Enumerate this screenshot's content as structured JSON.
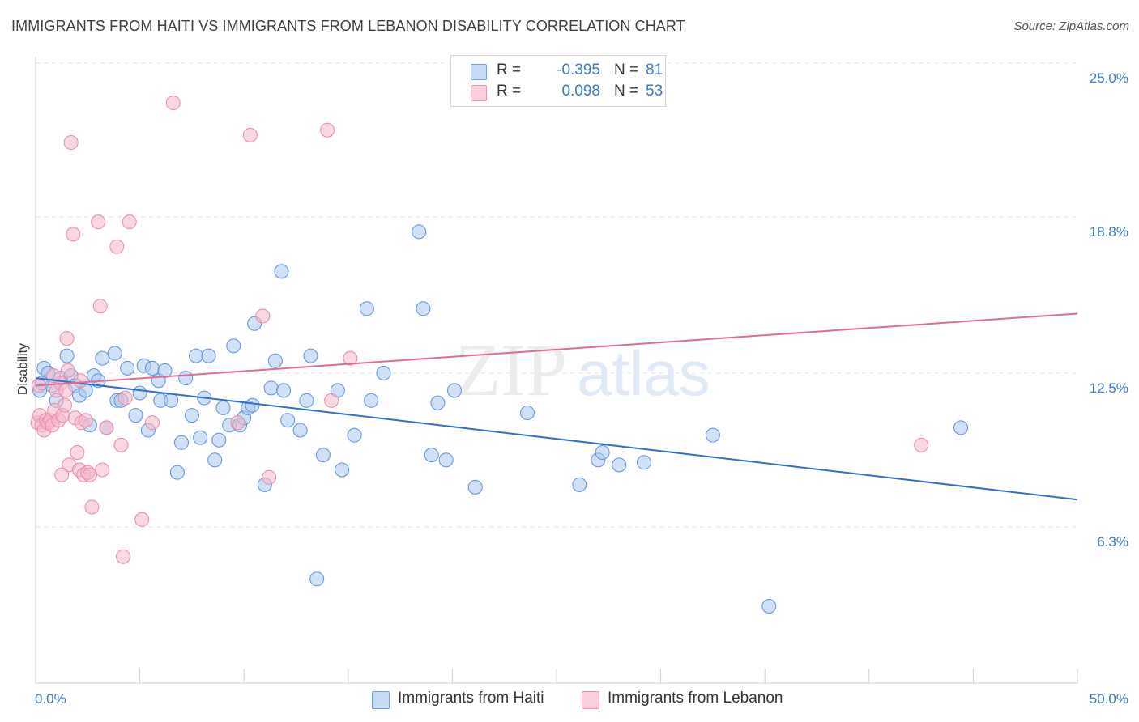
{
  "title": "IMMIGRANTS FROM HAITI VS IMMIGRANTS FROM LEBANON DISABILITY CORRELATION CHART",
  "source": "Source: ZipAtlas.com",
  "watermark": {
    "zip": "ZIP",
    "atlas": "atlas"
  },
  "legend": {
    "r_label": "R =",
    "n_label": "N =",
    "rows": [
      {
        "r": "-0.395",
        "n": "81",
        "color": "#a9c8f0"
      },
      {
        "r": "0.098",
        "n": "53",
        "color": "#f7b7ca"
      }
    ]
  },
  "chart_data": {
    "type": "scatter",
    "title": "IMMIGRANTS FROM HAITI VS IMMIGRANTS FROM LEBANON DISABILITY CORRELATION CHART",
    "xlabel": "",
    "ylabel": "Disability",
    "xlim": [
      0,
      50
    ],
    "ylim": [
      0,
      25
    ],
    "x_tick_labels": [
      "0.0%",
      "50.0%"
    ],
    "y_ticks": [
      6.3,
      12.5,
      18.8,
      25.0
    ],
    "y_tick_labels": [
      "6.3%",
      "12.5%",
      "18.8%",
      "25.0%"
    ],
    "grid": "horizontal dashed",
    "legend_position": "top-center",
    "series": [
      {
        "name": "Immigrants from Haiti",
        "color": "#a9c8f0",
        "stroke": "#5b93d6",
        "line_color": "#2e6fcc",
        "trend": {
          "x": [
            0,
            50
          ],
          "y": [
            12.3,
            7.4
          ]
        },
        "points": [
          [
            0.2,
            11.8
          ],
          [
            0.4,
            12.7
          ],
          [
            0.6,
            12.5
          ],
          [
            0.8,
            12.0
          ],
          [
            1.0,
            11.4
          ],
          [
            1.2,
            12.3
          ],
          [
            1.5,
            13.2
          ],
          [
            1.7,
            12.4
          ],
          [
            1.9,
            12.0
          ],
          [
            2.1,
            11.6
          ],
          [
            2.4,
            11.8
          ],
          [
            2.6,
            10.4
          ],
          [
            2.8,
            12.4
          ],
          [
            3.0,
            12.2
          ],
          [
            3.2,
            13.1
          ],
          [
            3.4,
            10.3
          ],
          [
            3.8,
            13.3
          ],
          [
            3.9,
            11.4
          ],
          [
            4.1,
            11.4
          ],
          [
            4.4,
            12.7
          ],
          [
            4.8,
            10.8
          ],
          [
            5.0,
            11.7
          ],
          [
            5.2,
            12.8
          ],
          [
            5.4,
            10.2
          ],
          [
            5.6,
            12.7
          ],
          [
            5.9,
            12.2
          ],
          [
            6.0,
            11.4
          ],
          [
            6.2,
            12.6
          ],
          [
            6.5,
            11.4
          ],
          [
            6.8,
            8.5
          ],
          [
            7.0,
            9.7
          ],
          [
            7.2,
            12.3
          ],
          [
            7.5,
            10.8
          ],
          [
            7.7,
            13.2
          ],
          [
            7.9,
            9.9
          ],
          [
            8.1,
            11.5
          ],
          [
            8.3,
            13.2
          ],
          [
            8.6,
            9.0
          ],
          [
            8.8,
            9.8
          ],
          [
            9.0,
            11.1
          ],
          [
            9.3,
            10.4
          ],
          [
            9.5,
            13.6
          ],
          [
            9.8,
            10.4
          ],
          [
            10.0,
            10.7
          ],
          [
            10.2,
            11.1
          ],
          [
            10.4,
            11.2
          ],
          [
            10.5,
            14.5
          ],
          [
            11.0,
            8.0
          ],
          [
            11.3,
            11.9
          ],
          [
            11.5,
            13.0
          ],
          [
            11.8,
            16.6
          ],
          [
            11.9,
            11.8
          ],
          [
            12.1,
            10.6
          ],
          [
            12.7,
            10.2
          ],
          [
            13.0,
            11.4
          ],
          [
            13.2,
            13.2
          ],
          [
            13.5,
            4.2
          ],
          [
            13.8,
            9.2
          ],
          [
            14.5,
            11.8
          ],
          [
            14.7,
            8.6
          ],
          [
            15.3,
            10.0
          ],
          [
            15.9,
            15.1
          ],
          [
            16.1,
            11.4
          ],
          [
            16.7,
            12.5
          ],
          [
            18.4,
            18.2
          ],
          [
            18.6,
            15.1
          ],
          [
            19.0,
            9.2
          ],
          [
            19.3,
            11.3
          ],
          [
            19.7,
            9.0
          ],
          [
            20.1,
            11.8
          ],
          [
            21.1,
            7.9
          ],
          [
            23.6,
            10.9
          ],
          [
            26.1,
            8.0
          ],
          [
            27.0,
            9.0
          ],
          [
            27.2,
            9.3
          ],
          [
            28.0,
            8.8
          ],
          [
            29.2,
            8.9
          ],
          [
            32.5,
            10.0
          ],
          [
            35.2,
            3.1
          ],
          [
            44.4,
            10.3
          ],
          [
            0.3,
            12.1
          ]
        ]
      },
      {
        "name": "Immigrants from Lebanon",
        "color": "#f7b7ca",
        "stroke": "#e58aa8",
        "line_color": "#e26a93",
        "trend": {
          "x": [
            0,
            50
          ],
          "y": [
            12.0,
            14.9
          ]
        },
        "points": [
          [
            0.1,
            10.5
          ],
          [
            0.2,
            10.8
          ],
          [
            0.3,
            10.4
          ],
          [
            0.4,
            10.2
          ],
          [
            0.5,
            10.6
          ],
          [
            0.6,
            10.5
          ],
          [
            0.7,
            10.6
          ],
          [
            0.8,
            10.4
          ],
          [
            0.9,
            11.0
          ],
          [
            1.0,
            11.8
          ],
          [
            1.1,
            10.6
          ],
          [
            1.2,
            12.1
          ],
          [
            1.3,
            10.8
          ],
          [
            1.4,
            11.2
          ],
          [
            1.5,
            13.9
          ],
          [
            1.6,
            8.8
          ],
          [
            1.7,
            21.8
          ],
          [
            1.8,
            18.1
          ],
          [
            1.9,
            10.7
          ],
          [
            2.0,
            9.3
          ],
          [
            2.1,
            8.6
          ],
          [
            2.2,
            10.5
          ],
          [
            2.3,
            8.4
          ],
          [
            2.4,
            10.6
          ],
          [
            2.5,
            8.5
          ],
          [
            2.6,
            8.4
          ],
          [
            2.7,
            7.1
          ],
          [
            3.0,
            18.6
          ],
          [
            3.1,
            15.2
          ],
          [
            3.2,
            8.6
          ],
          [
            3.4,
            10.3
          ],
          [
            3.9,
            17.6
          ],
          [
            4.1,
            9.6
          ],
          [
            4.2,
            5.1
          ],
          [
            4.3,
            11.5
          ],
          [
            4.5,
            18.6
          ],
          [
            5.1,
            6.6
          ],
          [
            5.6,
            10.5
          ],
          [
            6.6,
            23.4
          ],
          [
            9.7,
            10.5
          ],
          [
            10.3,
            22.1
          ],
          [
            10.9,
            14.8
          ],
          [
            11.2,
            8.3
          ],
          [
            14.0,
            22.3
          ],
          [
            14.2,
            11.4
          ],
          [
            15.1,
            13.1
          ],
          [
            42.5,
            9.6
          ],
          [
            0.15,
            12.0
          ],
          [
            1.25,
            8.4
          ],
          [
            2.15,
            12.2
          ],
          [
            1.55,
            12.6
          ],
          [
            0.85,
            12.4
          ],
          [
            1.45,
            11.8
          ]
        ]
      }
    ]
  }
}
